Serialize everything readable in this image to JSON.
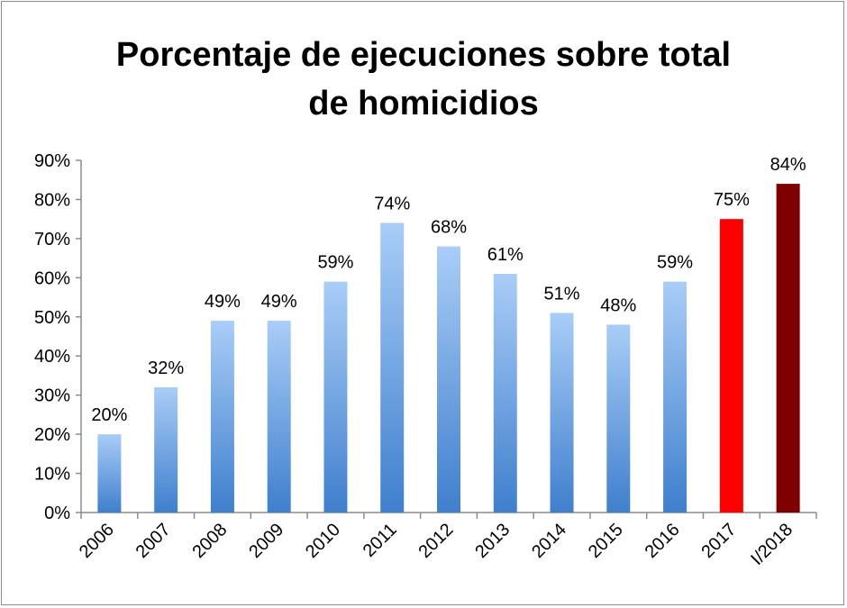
{
  "chart_data": {
    "type": "bar",
    "title_line1": "Porcentaje de ejecuciones sobre total",
    "title_line2": "de homicidios",
    "categories": [
      "2006",
      "2007",
      "2008",
      "2009",
      "2010",
      "2011",
      "2012",
      "2013",
      "2014",
      "2015",
      "2016",
      "2017",
      "I/2018"
    ],
    "values": [
      20,
      32,
      49,
      49,
      59,
      74,
      68,
      61,
      51,
      48,
      59,
      75,
      84
    ],
    "data_labels": [
      "20%",
      "32%",
      "49%",
      "49%",
      "59%",
      "74%",
      "68%",
      "61%",
      "51%",
      "48%",
      "59%",
      "75%",
      "84%"
    ],
    "bar_styles": [
      "gradient",
      "gradient",
      "gradient",
      "gradient",
      "gradient",
      "gradient",
      "gradient",
      "gradient",
      "gradient",
      "gradient",
      "gradient",
      "red",
      "darkred"
    ],
    "colors": {
      "gradient_top": "#a9cdf7",
      "gradient_bottom": "#3f7fcd",
      "red": "#ff0000",
      "darkred": "#7f0000",
      "axis": "#8c8c8c"
    },
    "ylim": [
      0,
      90
    ],
    "yticks": [
      "0%",
      "10%",
      "20%",
      "30%",
      "40%",
      "50%",
      "60%",
      "70%",
      "80%",
      "90%"
    ],
    "grid": false,
    "legend": "none",
    "xlabel": "",
    "ylabel": ""
  }
}
